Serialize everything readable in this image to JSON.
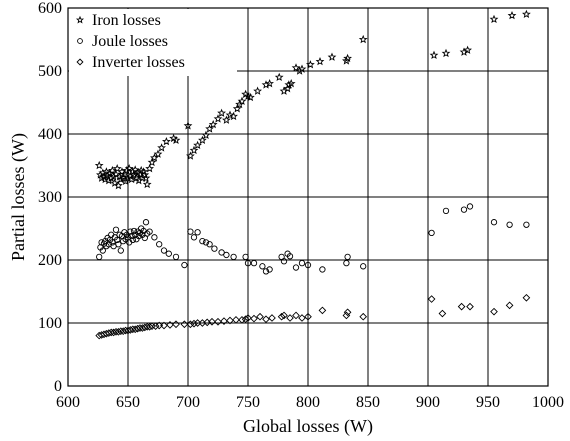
{
  "chart_data": {
    "type": "scatter",
    "xlabel": "Global losses (W)",
    "ylabel": "Partial losses (W)",
    "xlim": [
      600,
      1000
    ],
    "ylim": [
      0,
      600
    ],
    "xticks": [
      600,
      650,
      700,
      750,
      800,
      850,
      900,
      950,
      1000
    ],
    "yticks": [
      0,
      100,
      200,
      300,
      400,
      500,
      600
    ],
    "grid": true,
    "legend_position": "top-left",
    "series": [
      {
        "name": "Iron losses",
        "marker": "star",
        "points": [
          [
            626,
            350
          ],
          [
            627,
            335
          ],
          [
            628,
            330
          ],
          [
            629,
            338
          ],
          [
            630,
            332
          ],
          [
            631,
            328
          ],
          [
            632,
            340
          ],
          [
            633,
            334
          ],
          [
            634,
            326
          ],
          [
            635,
            337
          ],
          [
            636,
            330
          ],
          [
            637,
            342
          ],
          [
            638,
            332
          ],
          [
            639,
            322
          ],
          [
            640,
            336
          ],
          [
            641,
            345
          ],
          [
            642,
            318
          ],
          [
            643,
            332
          ],
          [
            644,
            328
          ],
          [
            645,
            340
          ],
          [
            646,
            330
          ],
          [
            647,
            336
          ],
          [
            648,
            325
          ],
          [
            649,
            342
          ],
          [
            650,
            330
          ],
          [
            651,
            345
          ],
          [
            652,
            333
          ],
          [
            653,
            328
          ],
          [
            654,
            340
          ],
          [
            655,
            335
          ],
          [
            656,
            343
          ],
          [
            657,
            330
          ],
          [
            658,
            338
          ],
          [
            659,
            326
          ],
          [
            660,
            336
          ],
          [
            661,
            342
          ],
          [
            662,
            330
          ],
          [
            663,
            340
          ],
          [
            664,
            335
          ],
          [
            665,
            330
          ],
          [
            666,
            320
          ],
          [
            668,
            345
          ],
          [
            670,
            355
          ],
          [
            672,
            362
          ],
          [
            675,
            368
          ],
          [
            678,
            378
          ],
          [
            682,
            388
          ],
          [
            688,
            393
          ],
          [
            690,
            390
          ],
          [
            700,
            413
          ],
          [
            702,
            365
          ],
          [
            705,
            374
          ],
          [
            708,
            382
          ],
          [
            712,
            390
          ],
          [
            715,
            398
          ],
          [
            718,
            408
          ],
          [
            721,
            415
          ],
          [
            725,
            424
          ],
          [
            728,
            433
          ],
          [
            732,
            422
          ],
          [
            735,
            430
          ],
          [
            738,
            428
          ],
          [
            741,
            440
          ],
          [
            743,
            447
          ],
          [
            745,
            452
          ],
          [
            748,
            463
          ],
          [
            750,
            460
          ],
          [
            752,
            458
          ],
          [
            758,
            468
          ],
          [
            765,
            478
          ],
          [
            768,
            480
          ],
          [
            776,
            490
          ],
          [
            780,
            468
          ],
          [
            783,
            472
          ],
          [
            784,
            478
          ],
          [
            786,
            480
          ],
          [
            790,
            505
          ],
          [
            793,
            500
          ],
          [
            795,
            503
          ],
          [
            802,
            510
          ],
          [
            810,
            515
          ],
          [
            820,
            522
          ],
          [
            832,
            516
          ],
          [
            833,
            520
          ],
          [
            846,
            550
          ],
          [
            905,
            525
          ],
          [
            915,
            528
          ],
          [
            930,
            530
          ],
          [
            933,
            533
          ],
          [
            955,
            582
          ],
          [
            970,
            588
          ],
          [
            982,
            590
          ]
        ]
      },
      {
        "name": "Joule losses",
        "marker": "circle",
        "points": [
          [
            626,
            205
          ],
          [
            627,
            220
          ],
          [
            628,
            228
          ],
          [
            629,
            215
          ],
          [
            630,
            226
          ],
          [
            631,
            230
          ],
          [
            632,
            222
          ],
          [
            633,
            235
          ],
          [
            634,
            225
          ],
          [
            635,
            232
          ],
          [
            636,
            240
          ],
          [
            637,
            228
          ],
          [
            638,
            222
          ],
          [
            639,
            236
          ],
          [
            640,
            248
          ],
          [
            641,
            232
          ],
          [
            642,
            225
          ],
          [
            643,
            240
          ],
          [
            644,
            215
          ],
          [
            645,
            238
          ],
          [
            646,
            230
          ],
          [
            647,
            244
          ],
          [
            648,
            233
          ],
          [
            649,
            240
          ],
          [
            650,
            236
          ],
          [
            651,
            228
          ],
          [
            652,
            245
          ],
          [
            653,
            238
          ],
          [
            654,
            232
          ],
          [
            655,
            246
          ],
          [
            656,
            240
          ],
          [
            657,
            233
          ],
          [
            658,
            245
          ],
          [
            659,
            238
          ],
          [
            660,
            243
          ],
          [
            661,
            250
          ],
          [
            662,
            240
          ],
          [
            663,
            246
          ],
          [
            664,
            235
          ],
          [
            665,
            260
          ],
          [
            666,
            242
          ],
          [
            668,
            245
          ],
          [
            672,
            236
          ],
          [
            676,
            225
          ],
          [
            680,
            215
          ],
          [
            684,
            210
          ],
          [
            690,
            205
          ],
          [
            697,
            192
          ],
          [
            702,
            245
          ],
          [
            705,
            236
          ],
          [
            708,
            244
          ],
          [
            712,
            230
          ],
          [
            715,
            228
          ],
          [
            718,
            225
          ],
          [
            722,
            218
          ],
          [
            728,
            212
          ],
          [
            732,
            208
          ],
          [
            738,
            205
          ],
          [
            748,
            205
          ],
          [
            750,
            195
          ],
          [
            755,
            195
          ],
          [
            762,
            190
          ],
          [
            765,
            182
          ],
          [
            768,
            185
          ],
          [
            778,
            205
          ],
          [
            780,
            198
          ],
          [
            783,
            210
          ],
          [
            785,
            206
          ],
          [
            790,
            188
          ],
          [
            795,
            195
          ],
          [
            800,
            192
          ],
          [
            812,
            185
          ],
          [
            832,
            195
          ],
          [
            833,
            205
          ],
          [
            846,
            190
          ],
          [
            903,
            243
          ],
          [
            915,
            278
          ],
          [
            930,
            280
          ],
          [
            935,
            285
          ],
          [
            955,
            260
          ],
          [
            968,
            256
          ],
          [
            982,
            256
          ]
        ]
      },
      {
        "name": "Inverter losses",
        "marker": "diamond",
        "points": [
          [
            626,
            80
          ],
          [
            628,
            81
          ],
          [
            630,
            82
          ],
          [
            632,
            83
          ],
          [
            634,
            84
          ],
          [
            636,
            85
          ],
          [
            638,
            85
          ],
          [
            640,
            86
          ],
          [
            642,
            86
          ],
          [
            644,
            87
          ],
          [
            646,
            87
          ],
          [
            648,
            88
          ],
          [
            650,
            88
          ],
          [
            652,
            89
          ],
          [
            654,
            90
          ],
          [
            656,
            90
          ],
          [
            658,
            91
          ],
          [
            660,
            92
          ],
          [
            662,
            92
          ],
          [
            664,
            93
          ],
          [
            666,
            94
          ],
          [
            668,
            94
          ],
          [
            670,
            95
          ],
          [
            673,
            95
          ],
          [
            676,
            96
          ],
          [
            680,
            96
          ],
          [
            685,
            97
          ],
          [
            690,
            98
          ],
          [
            697,
            98
          ],
          [
            702,
            98
          ],
          [
            705,
            99
          ],
          [
            708,
            100
          ],
          [
            712,
            100
          ],
          [
            716,
            101
          ],
          [
            720,
            102
          ],
          [
            725,
            102
          ],
          [
            730,
            103
          ],
          [
            735,
            104
          ],
          [
            740,
            105
          ],
          [
            745,
            105
          ],
          [
            748,
            106
          ],
          [
            750,
            108
          ],
          [
            755,
            107
          ],
          [
            760,
            110
          ],
          [
            765,
            106
          ],
          [
            770,
            108
          ],
          [
            778,
            110
          ],
          [
            780,
            112
          ],
          [
            785,
            108
          ],
          [
            790,
            112
          ],
          [
            795,
            108
          ],
          [
            800,
            110
          ],
          [
            812,
            120
          ],
          [
            832,
            112
          ],
          [
            833,
            117
          ],
          [
            846,
            110
          ],
          [
            903,
            138
          ],
          [
            912,
            115
          ],
          [
            928,
            126
          ],
          [
            935,
            126
          ],
          [
            955,
            118
          ],
          [
            968,
            128
          ],
          [
            982,
            140
          ]
        ]
      }
    ]
  }
}
